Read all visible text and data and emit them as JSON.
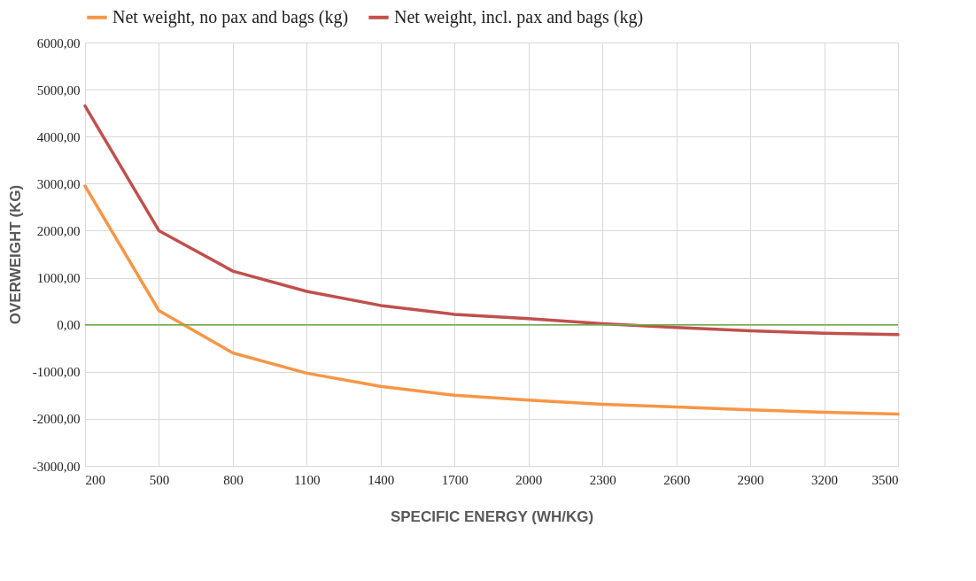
{
  "chart_data": {
    "type": "line",
    "xlabel": "SPECIFIC ENERGY (WH/KG)",
    "ylabel": "OVERWEIGHT (KG)",
    "x": [
      200,
      500,
      800,
      1100,
      1400,
      1700,
      2000,
      2300,
      2600,
      2900,
      3200,
      3500
    ],
    "series": [
      {
        "name": "Net weight, no pax and bags (kg)",
        "color": "#f79646",
        "values": [
          2950,
          300,
          -600,
          -1030,
          -1310,
          -1500,
          -1600,
          -1690,
          -1750,
          -1810,
          -1860,
          -1900
        ]
      },
      {
        "name": "Net weight, incl. pax and bags (kg)",
        "color": "#c0504d",
        "values": [
          4650,
          2000,
          1140,
          710,
          410,
          220,
          130,
          20,
          -60,
          -130,
          -180,
          -210
        ]
      }
    ],
    "xlim": [
      200,
      3500
    ],
    "xticks": [
      200,
      500,
      800,
      1100,
      1400,
      1700,
      2000,
      2300,
      2600,
      2900,
      3200,
      3500
    ],
    "ylim": [
      -3000,
      6000
    ],
    "yticks": [
      {
        "value": -3000,
        "label": "-3000,00"
      },
      {
        "value": -2000,
        "label": "-2000,00"
      },
      {
        "value": -1000,
        "label": "-1000,00"
      },
      {
        "value": 0,
        "label": "0,00"
      },
      {
        "value": 1000,
        "label": "1000,00"
      },
      {
        "value": 2000,
        "label": "2000,00"
      },
      {
        "value": 3000,
        "label": "3000,00"
      },
      {
        "value": 4000,
        "label": "4000,00"
      },
      {
        "value": 5000,
        "label": "5000,00"
      },
      {
        "value": 6000,
        "label": "6000,00"
      }
    ],
    "ref_lines": [
      {
        "axis": "y",
        "value": 0,
        "color": "#70ad47"
      }
    ],
    "grid": true,
    "legend": "top",
    "marker": "none",
    "line_style": "solid"
  }
}
